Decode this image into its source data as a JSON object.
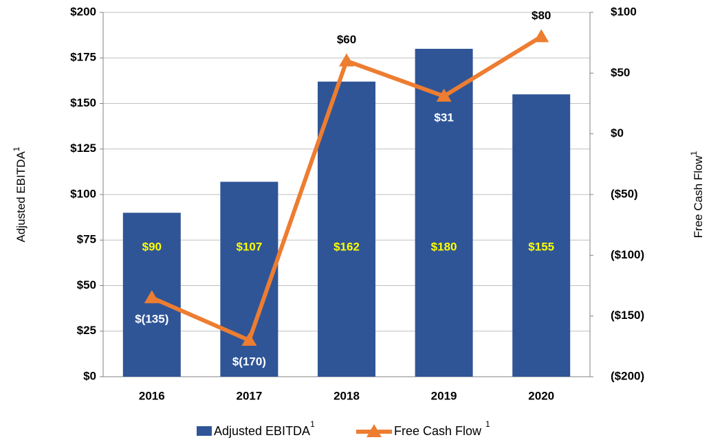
{
  "chart_data": {
    "type": "bar_line",
    "ylabel": "Adjusted EBITDA",
    "y2label": "Free Cash Flow",
    "categories": [
      "2016",
      "2017",
      "2018",
      "2019",
      "2020"
    ],
    "series": [
      {
        "name": "Adjusted EBITDA",
        "note": "1",
        "type": "bar",
        "color": "#2f5597",
        "values": [
          90,
          107,
          162,
          180,
          155
        ],
        "value_labels": [
          "$90",
          "$107",
          "$162",
          "$180",
          "$155"
        ],
        "label_color": "#ffff00"
      },
      {
        "name": "Free Cash Flow",
        "note": "1",
        "type": "line",
        "axis": "y2",
        "color": "#ed7d31",
        "values": [
          -135,
          -170,
          60,
          31,
          80
        ],
        "value_labels": [
          "$(135)",
          "$(170)",
          "$60",
          "$31",
          "$80"
        ]
      }
    ],
    "ylim": [
      0,
      200
    ],
    "yticks": [
      {
        "value": 0,
        "label": "$0"
      },
      {
        "value": 25,
        "label": "$25"
      },
      {
        "value": 50,
        "label": "$50"
      },
      {
        "value": 75,
        "label": "$75"
      },
      {
        "value": 100,
        "label": "$100"
      },
      {
        "value": 125,
        "label": "$125"
      },
      {
        "value": 150,
        "label": "$150"
      },
      {
        "value": 175,
        "label": "$175"
      },
      {
        "value": 200,
        "label": "$200"
      }
    ],
    "y2lim": [
      -200,
      100
    ],
    "y2ticks": [
      {
        "value": -200,
        "label": "($200)"
      },
      {
        "value": -150,
        "label": "($150)"
      },
      {
        "value": -100,
        "label": "($100)"
      },
      {
        "value": -50,
        "label": "($50)"
      },
      {
        "value": 0,
        "label": "$0"
      },
      {
        "value": 50,
        "label": "$50"
      },
      {
        "value": 100,
        "label": "$100"
      }
    ],
    "grid": true,
    "legend": "bottom"
  }
}
